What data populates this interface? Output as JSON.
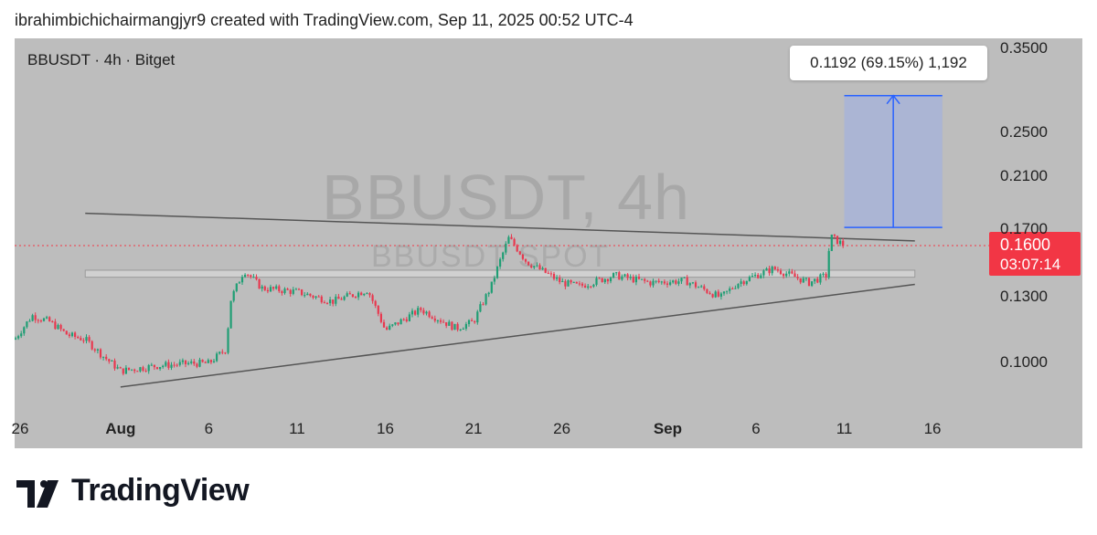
{
  "header": {
    "text": "ibrahimbichichairmangjyr9 created with TradingView.com, Sep 11, 2025 00:52 UTC-4"
  },
  "symbol_line": "BBUSDT · 4h · Bitget",
  "watermark": {
    "main": "BBUSDT, 4h",
    "sub": "BBUSDT SPOT"
  },
  "price_tag": {
    "price": "0.1600",
    "countdown": "03:07:14"
  },
  "measure_label": "0.1192 (69.15%) 1,192",
  "brand": {
    "name": "TradingView"
  },
  "colors": {
    "up": "#1f9e74",
    "down": "#e8384f",
    "background": "#bdbdbd",
    "measure_fill": "#a9b4d6",
    "measure_line": "#2962ff",
    "price_line": "#f23645"
  },
  "chart_data": {
    "type": "candlestick",
    "title": "BBUSDT · 4h · Bitget",
    "y_scale": "log",
    "y_ticks": [
      0.35,
      0.25,
      0.21,
      0.17,
      0.16,
      0.13,
      0.1
    ],
    "y_tick_labels": [
      "0.3500",
      "0.2500",
      "0.2100",
      "0.1700",
      "0.1600",
      "0.1300",
      "0.1000"
    ],
    "x_tick_labels": [
      "26",
      "Aug",
      "6",
      "11",
      "16",
      "21",
      "26",
      "Sep",
      "6",
      "11",
      "16"
    ],
    "x_tick_dates": [
      "2025-07-26",
      "2025-08-01",
      "2025-08-06",
      "2025-08-11",
      "2025-08-16",
      "2025-08-21",
      "2025-08-26",
      "2025-09-01",
      "2025-09-06",
      "2025-09-11",
      "2025-09-16"
    ],
    "x_range": [
      "2025-07-26",
      "2025-09-19"
    ],
    "price_path": [
      {
        "date": "2025-07-26",
        "close": 0.11
      },
      {
        "date": "2025-07-27",
        "close": 0.121
      },
      {
        "date": "2025-07-28",
        "close": 0.118
      },
      {
        "date": "2025-07-29",
        "close": 0.112
      },
      {
        "date": "2025-07-30",
        "close": 0.11
      },
      {
        "date": "2025-07-31",
        "close": 0.103
      },
      {
        "date": "2025-08-01",
        "close": 0.097
      },
      {
        "date": "2025-08-03",
        "close": 0.099
      },
      {
        "date": "2025-08-05",
        "close": 0.1
      },
      {
        "date": "2025-08-06",
        "close": 0.1
      },
      {
        "date": "2025-08-07",
        "close": 0.106
      },
      {
        "date": "2025-08-07",
        "close": 0.128
      },
      {
        "date": "2025-08-08",
        "close": 0.145
      },
      {
        "date": "2025-08-09",
        "close": 0.135
      },
      {
        "date": "2025-08-11",
        "close": 0.133
      },
      {
        "date": "2025-08-13",
        "close": 0.128
      },
      {
        "date": "2025-08-15",
        "close": 0.134
      },
      {
        "date": "2025-08-16",
        "close": 0.114
      },
      {
        "date": "2025-08-18",
        "close": 0.124
      },
      {
        "date": "2025-08-20",
        "close": 0.115
      },
      {
        "date": "2025-08-21",
        "close": 0.118
      },
      {
        "date": "2025-08-22",
        "close": 0.136
      },
      {
        "date": "2025-08-23",
        "close": 0.165
      },
      {
        "date": "2025-08-24",
        "close": 0.15
      },
      {
        "date": "2025-08-26",
        "close": 0.138
      },
      {
        "date": "2025-08-27",
        "close": 0.136
      },
      {
        "date": "2025-08-29",
        "close": 0.142
      },
      {
        "date": "2025-08-31",
        "close": 0.138
      },
      {
        "date": "2025-09-02",
        "close": 0.139
      },
      {
        "date": "2025-09-04",
        "close": 0.13
      },
      {
        "date": "2025-09-05",
        "close": 0.138
      },
      {
        "date": "2025-09-07",
        "close": 0.146
      },
      {
        "date": "2025-09-09",
        "close": 0.138
      },
      {
        "date": "2025-09-10",
        "close": 0.142
      },
      {
        "date": "2025-09-10",
        "close": 0.166
      },
      {
        "date": "2025-09-11",
        "close": 0.16
      }
    ],
    "current_price": 0.16,
    "horizontal_zone": {
      "date_from": "2025-07-30",
      "date_to": "2025-09-15",
      "price_low": 0.141,
      "price_high": 0.145
    },
    "trendlines": [
      {
        "from": {
          "date": "2025-07-30",
          "price": 0.182
        },
        "to": {
          "date": "2025-09-15",
          "price": 0.163
        }
      },
      {
        "from": {
          "date": "2025-08-01",
          "price": 0.091
        },
        "to": {
          "date": "2025-09-15",
          "price": 0.137
        }
      }
    ],
    "measure": {
      "date_from": "2025-09-11",
      "date_to": "2025-09-15",
      "price_from": 0.172,
      "price_to": 0.291
    }
  }
}
